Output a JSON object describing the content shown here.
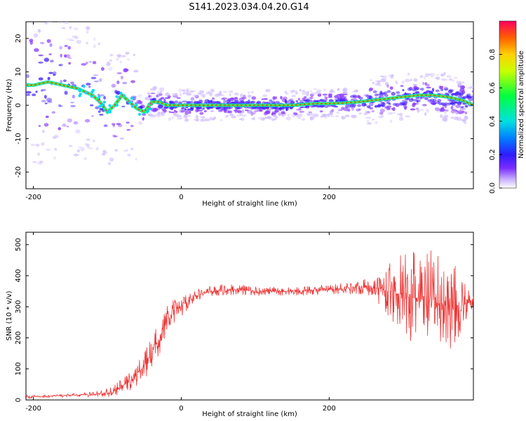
{
  "figure": {
    "title": "S141.2023.034.04.20.G14"
  },
  "chart_data": [
    {
      "type": "heatmap",
      "xlabel": "Height of straight line (km)",
      "ylabel": "Frequency (Hz)",
      "xlim": [
        -210,
        395
      ],
      "ylim": [
        -25,
        25
      ],
      "x_ticks": [
        -200,
        0,
        200
      ],
      "y_ticks": [
        -20,
        -10,
        0,
        10,
        20
      ],
      "colorbar": {
        "label": "Normalized spectral amplitude",
        "range": [
          0,
          1
        ],
        "ticks": [
          "0.0",
          "0.2",
          "0.4",
          "0.6",
          "0.8"
        ]
      },
      "ridge": {
        "x": [
          -200,
          -180,
          -160,
          -140,
          -130,
          -120,
          -110,
          -100,
          -90,
          -80,
          -70,
          -60,
          -50,
          -40,
          -30,
          -20,
          0,
          50,
          100,
          150,
          180,
          200,
          220,
          240,
          260,
          280,
          300,
          320,
          340,
          360,
          380,
          395
        ],
        "y": [
          6,
          7,
          6,
          5,
          4,
          3,
          1,
          -2,
          0,
          3,
          1,
          -1,
          -2,
          1,
          1,
          0,
          0,
          0,
          0,
          0,
          0.5,
          0.5,
          0.7,
          1,
          1.5,
          2,
          2.5,
          3,
          3,
          2.5,
          1.5,
          0
        ]
      }
    },
    {
      "type": "line",
      "xlabel": "Height of straight line (km)",
      "ylabel": "SNR (10 * v/v)",
      "xlim": [
        -210,
        395
      ],
      "ylim": [
        0,
        540
      ],
      "x_ticks": [
        -200,
        0,
        200
      ],
      "y_ticks": [
        0,
        100,
        200,
        300,
        400,
        500
      ],
      "series": [
        {
          "color": "#ee3333",
          "x": [
            -210,
            -180,
            -150,
            -120,
            -100,
            -90,
            -80,
            -70,
            -60,
            -50,
            -40,
            -30,
            -20,
            -10,
            0,
            10,
            20,
            30,
            40,
            60,
            80,
            100,
            150,
            200,
            250,
            270,
            290,
            310,
            330,
            350,
            370,
            385,
            395
          ],
          "y": [
            10,
            12,
            15,
            18,
            22,
            30,
            45,
            60,
            80,
            110,
            150,
            200,
            250,
            280,
            300,
            320,
            335,
            345,
            350,
            355,
            355,
            350,
            350,
            355,
            365,
            360,
            345,
            330,
            320,
            310,
            300,
            310,
            315
          ],
          "spread": [
            5,
            5,
            5,
            8,
            15,
            18,
            25,
            30,
            40,
            45,
            50,
            55,
            55,
            45,
            35,
            25,
            20,
            18,
            18,
            18,
            18,
            15,
            15,
            15,
            25,
            60,
            110,
            160,
            170,
            160,
            140,
            60,
            20
          ]
        }
      ]
    }
  ]
}
